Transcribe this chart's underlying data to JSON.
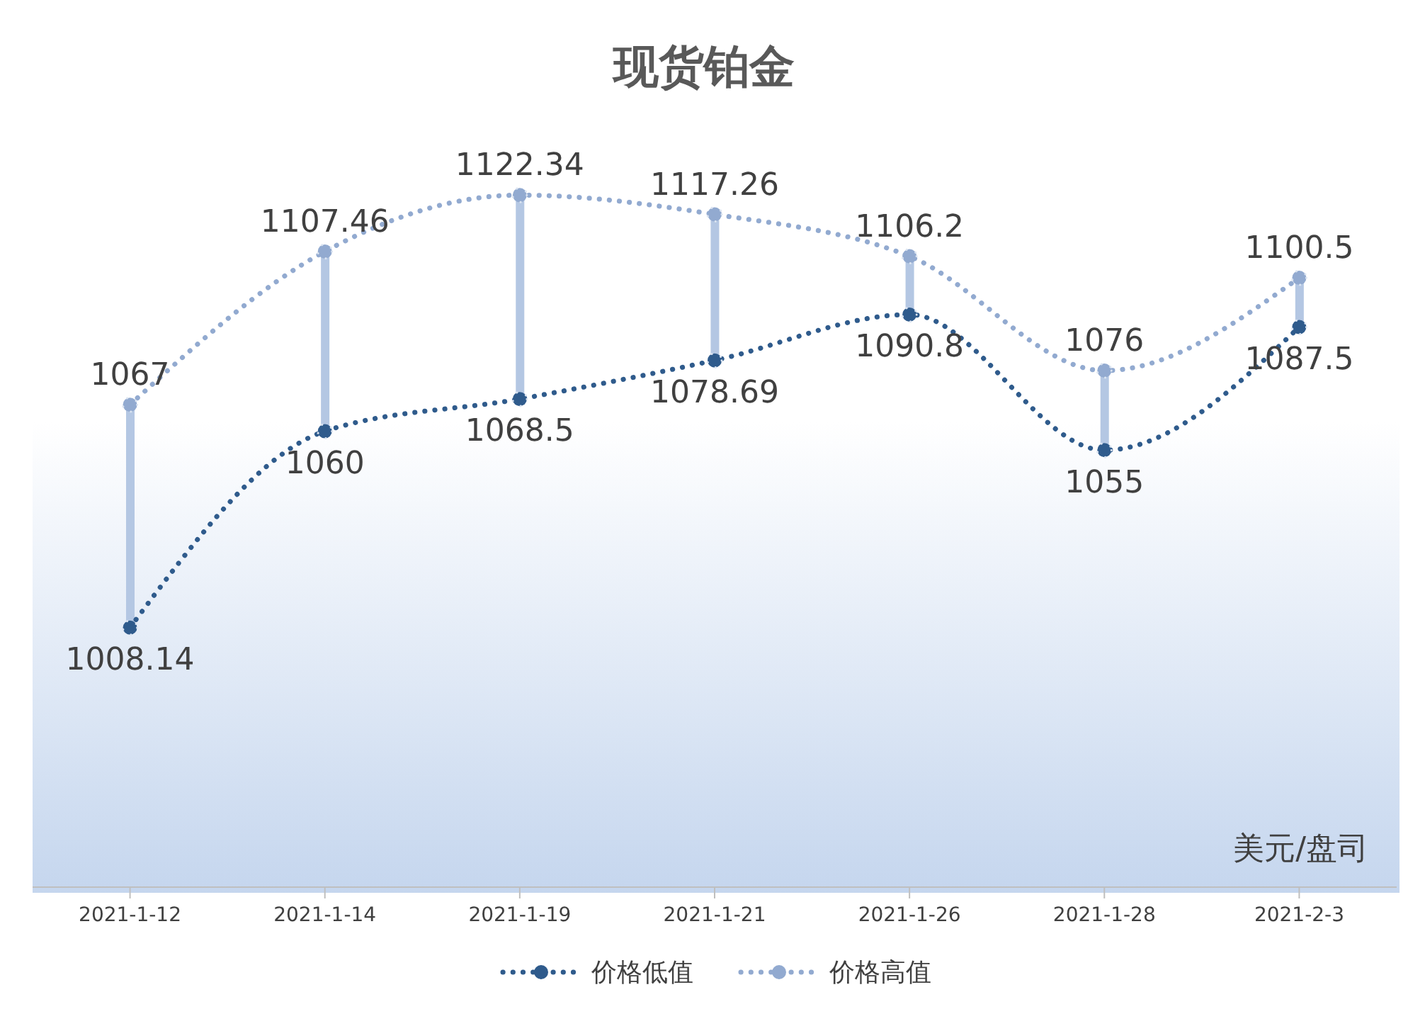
{
  "chart_data": {
    "type": "line",
    "title": "现货铂金",
    "categories": [
      "2021-1-12",
      "2021-1-14",
      "2021-1-19",
      "2021-1-21",
      "2021-1-26",
      "2021-1-28",
      "2021-2-3"
    ],
    "series": [
      {
        "name": "价格低值",
        "color": "#2f5b8c",
        "values": [
          1008.14,
          1060,
          1068.5,
          1078.69,
          1090.8,
          1055,
          1087.5
        ]
      },
      {
        "name": "价格高值",
        "color": "#92aad0",
        "values": [
          1067,
          1107.46,
          1122.34,
          1117.26,
          1106.2,
          1076,
          1100.5
        ]
      }
    ],
    "data_labels": true,
    "tick_labels": "x",
    "marker": "circle",
    "line_style": "dotted",
    "legend": "bottom",
    "grid": false,
    "annotations": [
      "美元/盘司"
    ]
  }
}
